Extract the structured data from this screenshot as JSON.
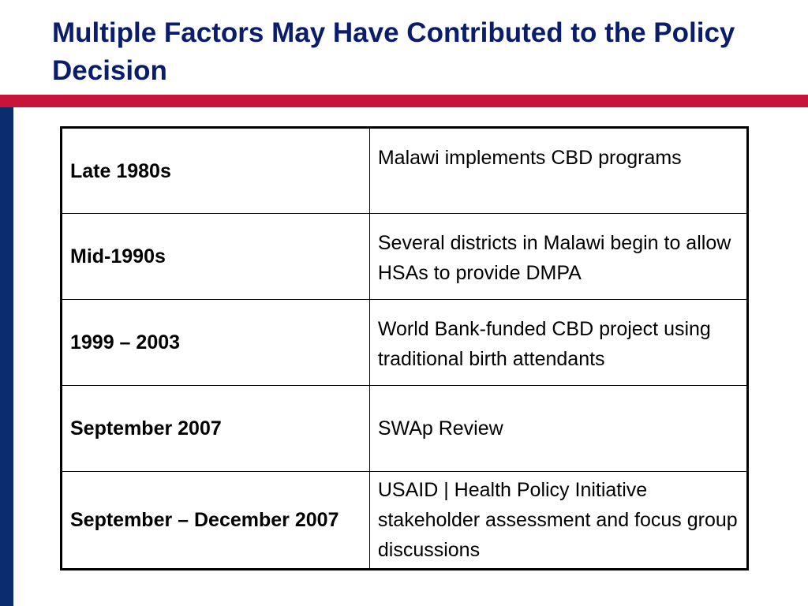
{
  "title": "Multiple Factors May Have Contributed to the Policy Decision",
  "colors": {
    "title": "#0a1c6c",
    "accent_bar": "#c8143a",
    "side_bar": "#0a2d6e"
  },
  "timeline": [
    {
      "period": "Late 1980s",
      "event": "Malawi implements CBD programs"
    },
    {
      "period": "Mid-1990s",
      "event": "Several districts in Malawi begin to allow HSAs to provide DMPA"
    },
    {
      "period": "1999 – 2003",
      "event": "World Bank-funded CBD project using traditional birth attendants"
    },
    {
      "period": "September 2007",
      "event": "SWAp Review"
    },
    {
      "period": "September – December 2007",
      "event": "USAID | Health Policy Initiative stakeholder assessment and focus group discussions"
    }
  ]
}
